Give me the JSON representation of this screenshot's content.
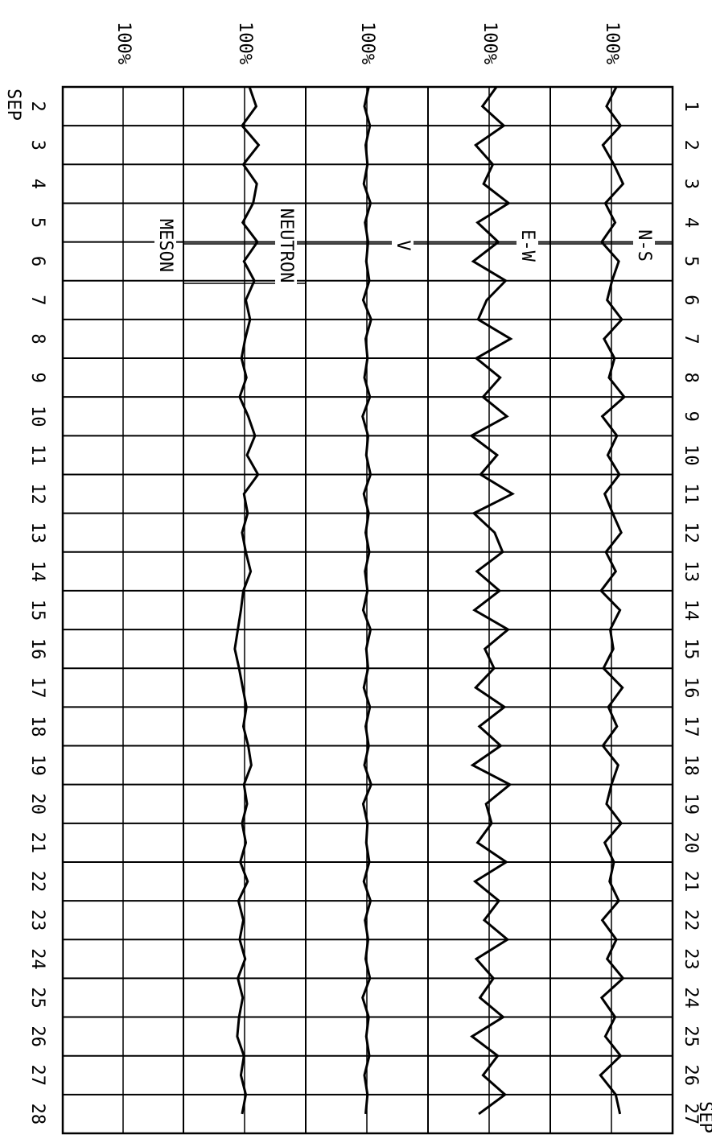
{
  "chart_data": {
    "type": "line",
    "month": "SEP",
    "x": [
      1,
      1.5,
      2,
      2.5,
      3,
      3.5,
      4,
      4.5,
      5,
      5.5,
      6,
      6.5,
      7,
      7.5,
      8,
      8.5,
      9,
      9.5,
      10,
      10.5,
      11,
      11.5,
      12,
      12.5,
      13,
      13.5,
      14,
      14.5,
      15,
      15.5,
      16,
      16.5,
      17,
      17.5,
      18,
      18.5,
      19,
      19.5,
      20,
      20.5,
      21,
      21.5,
      22,
      22.5,
      23,
      23.5,
      24,
      24.5,
      25,
      25.5,
      26,
      26.5,
      27,
      27.5
    ],
    "xlim": [
      1,
      28
    ],
    "xticks": [
      1,
      2,
      3,
      4,
      5,
      6,
      7,
      8,
      9,
      10,
      11,
      12,
      13,
      14,
      15,
      16,
      17,
      18,
      19,
      20,
      21,
      22,
      23,
      24,
      25,
      26,
      27
    ],
    "x2lim": [
      2,
      29
    ],
    "x2ticks": [
      2,
      3,
      4,
      5,
      6,
      7,
      8,
      9,
      10,
      11,
      12,
      13,
      14,
      15,
      16,
      17,
      18,
      19,
      20,
      21,
      22,
      23,
      24,
      25,
      26,
      27,
      28
    ],
    "grid": true,
    "series": [
      {
        "name": "N-S",
        "color": "#000000",
        "ylim": [
          90,
          110
        ],
        "yticks": [
          {
            "value": 100,
            "label": "100%"
          }
        ],
        "values": [
          100.8,
          99.2,
          101.5,
          98.6,
          100.4,
          101.9,
          99.0,
          100.6,
          98.4,
          101.2,
          100.1,
          99.3,
          101.7,
          98.8,
          100.5,
          99.6,
          102.1,
          98.5,
          100.9,
          99.4,
          101.3,
          98.9,
          100.2,
          101.6,
          99.1,
          100.7,
          98.3,
          101.4,
          99.8,
          100.3,
          98.7,
          101.8,
          99.5,
          100.9,
          98.6,
          101.1,
          100.0,
          99.2,
          101.6,
          98.9,
          100.4,
          99.7,
          101.2,
          98.5,
          100.8,
          99.3,
          101.9,
          98.4,
          100.6,
          99.0,
          101.5,
          98.2,
          100.7,
          101.4
        ]
      },
      {
        "name": "E-W",
        "color": "#000000",
        "ylim": [
          90,
          110
        ],
        "yticks": [
          {
            "value": 100,
            "label": "100%"
          }
        ],
        "values": [
          101.2,
          98.9,
          102.4,
          97.8,
          100.6,
          99.1,
          103.2,
          98.1,
          101.5,
          97.4,
          102.7,
          99.6,
          98.2,
          103.5,
          97.9,
          101.8,
          99.0,
          102.9,
          97.1,
          101.3,
          98.6,
          103.8,
          97.5,
          100.9,
          102.2,
          98.0,
          101.7,
          97.6,
          103.1,
          99.3,
          100.8,
          97.8,
          102.5,
          98.4,
          101.9,
          97.3,
          103.4,
          99.5,
          100.4,
          98.1,
          102.8,
          97.7,
          101.6,
          99.2,
          103.0,
          97.9,
          100.7,
          98.5,
          102.3,
          97.2,
          101.4,
          99.0,
          102.6,
          98.3
        ]
      },
      {
        "name": "V",
        "color": "#000000",
        "ylim": [
          90,
          110
        ],
        "yticks": [
          {
            "value": 100,
            "label": "100%"
          }
        ],
        "values": [
          100.3,
          99.6,
          100.5,
          99.8,
          100.1,
          99.5,
          100.6,
          99.7,
          100.2,
          99.9,
          100.4,
          99.4,
          100.7,
          99.8,
          100.1,
          99.6,
          100.5,
          99.3,
          100.2,
          99.9,
          100.6,
          99.5,
          100.3,
          99.8,
          100.4,
          99.7,
          100.1,
          99.4,
          100.6,
          99.9,
          100.2,
          99.5,
          100.5,
          99.8,
          100.3,
          99.6,
          100.7,
          99.4,
          100.1,
          99.9,
          100.4,
          99.5,
          100.6,
          99.7,
          100.2,
          99.8,
          100.5,
          99.3,
          100.3,
          99.9,
          100.4,
          99.6,
          100.1,
          99.8
        ]
      },
      {
        "name": "NEUTRON",
        "color": "#000000",
        "ylim": [
          90,
          110
        ],
        "yticks": [
          {
            "value": 100,
            "label": "100%"
          }
        ],
        "values": [
          100.8,
          101.9,
          99.6,
          102.3,
          99.8,
          102.0,
          101.4,
          99.7,
          102.1,
          99.9,
          101.6,
          100.2,
          100.9,
          100.1,
          99.5,
          100.3,
          99.2,
          100.6,
          101.7,
          100.4,
          102.2,
          99.9,
          100.5,
          99.6,
          100.2,
          101.0,
          99.8,
          99.4,
          98.9,
          98.4,
          99.1,
          99.7,
          100.3,
          99.8,
          100.6,
          101.1,
          99.9,
          100.4,
          99.6,
          100.2,
          99.3,
          100.5,
          99.0,
          99.8,
          99.2,
          100.1,
          98.9,
          99.7,
          99.1,
          98.8,
          99.9,
          99.4,
          100.2,
          99.6
        ]
      },
      {
        "name": "MESON",
        "color": "#000000",
        "ylim": [
          90,
          110
        ],
        "yticks": [
          {
            "value": 100,
            "label": "100%"
          }
        ]
      }
    ]
  }
}
